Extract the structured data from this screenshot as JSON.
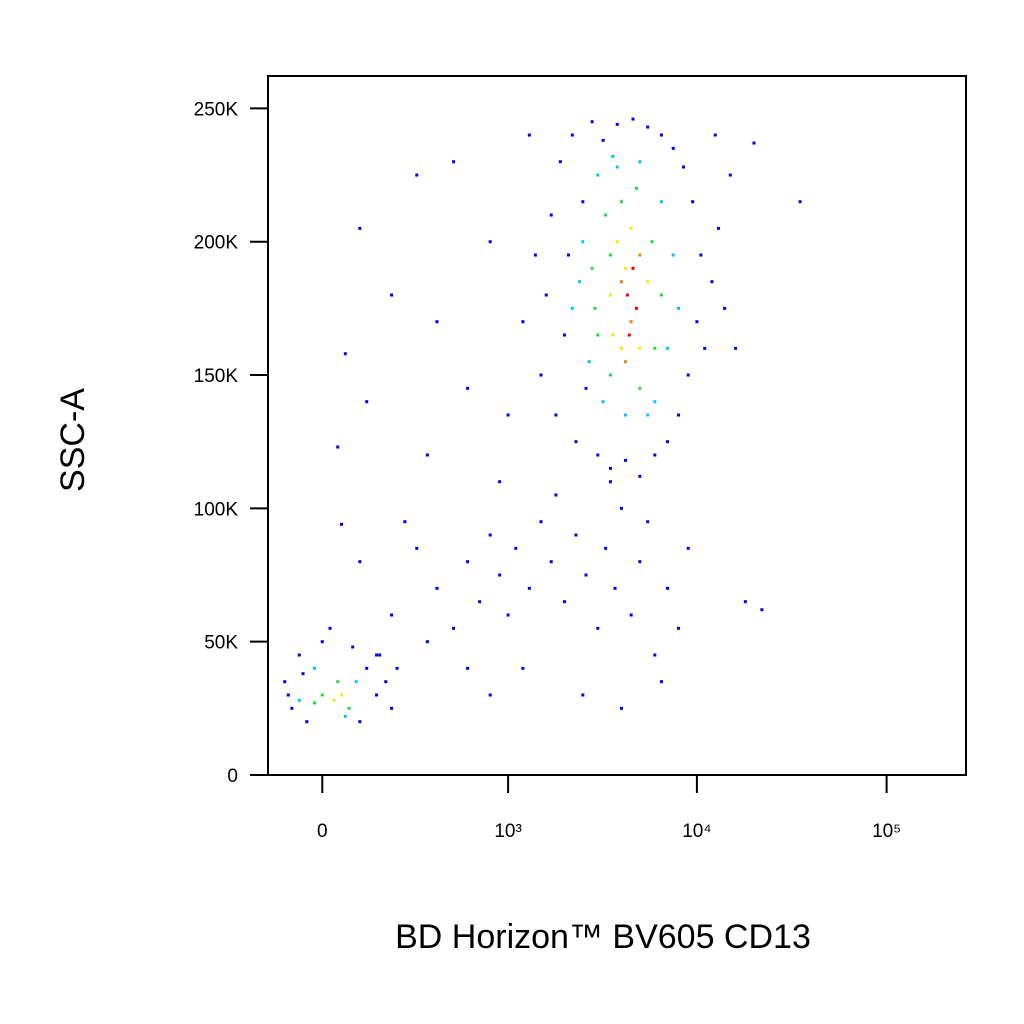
{
  "chart_data": {
    "type": "scatter",
    "xlabel": "BD Horizon™ BV605 CD13",
    "ylabel": "SSC-A",
    "xscale": "biexponential",
    "xlim": [
      -150,
      262144
    ],
    "ylim": [
      0,
      262144
    ],
    "xticks": [
      0,
      {
        "value": 1000,
        "label": "10³"
      },
      {
        "value": 10000,
        "label": "10⁴"
      },
      {
        "value": 100000,
        "label": "10⁵"
      }
    ],
    "yticks": [
      0,
      {
        "value": 50000,
        "label": "50K"
      },
      {
        "value": 100000,
        "label": "100K"
      },
      {
        "value": 150000,
        "label": "150K"
      },
      {
        "value": 200000,
        "label": "200K"
      },
      {
        "value": 250000,
        "label": "250K"
      }
    ],
    "series": [
      {
        "color": "#0000ff",
        "x": [
          1500,
          1600,
          1700,
          1800,
          1900,
          2000,
          2100,
          2200,
          2300,
          2500,
          2600,
          2800,
          3000,
          3200,
          3500,
          3800,
          4200,
          4600,
          5000,
          5500,
          6000,
          6500,
          7000,
          7500,
          8000,
          8500,
          9000,
          9500,
          10000,
          10500,
          11000,
          12000,
          13000,
          14000,
          12500,
          1300,
          1400,
          16000,
          15000,
          20000,
          35000,
          1200,
          200,
          300,
          400,
          250,
          500,
          600,
          700,
          800,
          900,
          1000,
          1100,
          1300,
          1500,
          1700,
          2000,
          2300,
          2600,
          3000,
          3300,
          3700,
          4000,
          4500,
          5000,
          5500,
          6000,
          7000,
          8000,
          9000,
          1200,
          2500,
          4000,
          6500,
          1800,
          3500,
          150,
          100,
          50,
          350,
          600,
          800,
          18000,
          22000,
          60,
          40,
          100,
          300,
          200,
          400,
          350,
          600,
          800,
          900,
          120,
          500,
          1000,
          -100,
          -80,
          -60,
          -40,
          0,
          20,
          80,
          120,
          150,
          180,
          200,
          -90,
          -50,
          100,
          160,
          220
        ],
        "y": [
          150000,
          180000,
          210000,
          135000,
          230000,
          165000,
          195000,
          240000,
          125000,
          215000,
          145000,
          245000,
          120000,
          238000,
          115000,
          244000,
          118000,
          246000,
          112000,
          243000,
          120000,
          240000,
          125000,
          235000,
          135000,
          228000,
          150000,
          215000,
          170000,
          195000,
          160000,
          185000,
          205000,
          175000,
          240000,
          240000,
          195000,
          160000,
          225000,
          237000,
          215000,
          170000,
          60000,
          85000,
          70000,
          95000,
          55000,
          80000,
          65000,
          90000,
          75000,
          60000,
          85000,
          70000,
          95000,
          80000,
          65000,
          90000,
          75000,
          55000,
          85000,
          70000,
          100000,
          60000,
          80000,
          95000,
          45000,
          70000,
          55000,
          85000,
          40000,
          30000,
          25000,
          35000,
          105000,
          110000,
          45000,
          80000,
          94000,
          50000,
          40000,
          30000,
          65000,
          62000,
          158000,
          123000,
          205000,
          225000,
          180000,
          170000,
          120000,
          145000,
          200000,
          110000,
          140000,
          230000,
          135000,
          35000,
          25000,
          45000,
          20000,
          50000,
          55000,
          48000,
          40000,
          30000,
          35000,
          25000,
          30000,
          38000,
          20000,
          45000,
          40000
        ]
      },
      {
        "color": "#00c8ff",
        "x": [
          2200,
          2500,
          2700,
          3000,
          3200,
          3600,
          4200,
          5000,
          6000,
          6500,
          7000,
          7500,
          2400,
          8000,
          5500,
          3800,
          -20,
          60,
          90,
          -60
        ],
        "y": [
          175000,
          200000,
          155000,
          225000,
          140000,
          232000,
          135000,
          230000,
          140000,
          215000,
          160000,
          195000,
          185000,
          175000,
          135000,
          228000,
          40000,
          22000,
          35000,
          28000
        ]
      },
      {
        "color": "#20e040",
        "x": [
          2800,
          3000,
          3300,
          3500,
          4000,
          5000,
          5800,
          6000,
          6500,
          2900,
          4800,
          3500,
          0,
          40,
          70,
          -20
        ],
        "y": [
          190000,
          165000,
          210000,
          150000,
          215000,
          145000,
          200000,
          160000,
          180000,
          175000,
          220000,
          195000,
          30000,
          35000,
          25000,
          27000
        ]
      },
      {
        "color": "#f0f000",
        "x": [
          3500,
          3800,
          4000,
          4500,
          5000,
          5500,
          3600,
          4200,
          30,
          50
        ],
        "y": [
          180000,
          200000,
          160000,
          205000,
          160000,
          185000,
          165000,
          190000,
          28000,
          30000
        ]
      },
      {
        "color": "#ff8000",
        "x": [
          4000,
          4500,
          5000,
          4200
        ],
        "y": [
          185000,
          170000,
          195000,
          155000
        ]
      },
      {
        "color": "#ff0000",
        "x": [
          4300,
          4600,
          4800,
          4400
        ],
        "y": [
          180000,
          190000,
          175000,
          165000
        ]
      }
    ]
  }
}
